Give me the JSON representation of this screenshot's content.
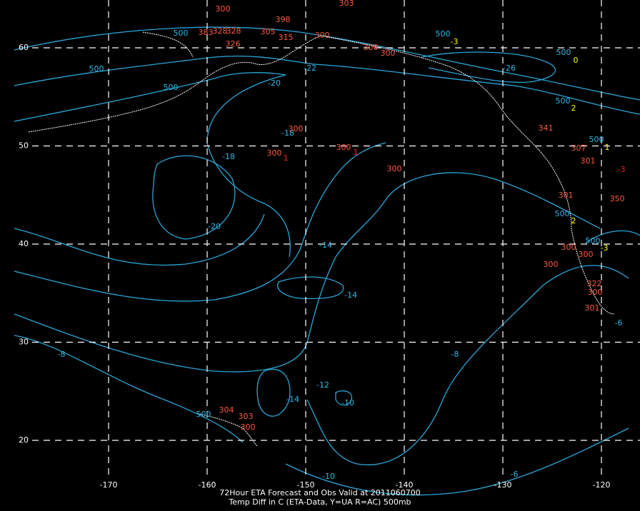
{
  "map": {
    "title_lines": [
      "72Hour ETA Forecast and Obs Valid at 2011060700",
      "Temp Diff in C (ETA-Data, Y=UA R=AC) 500mb"
    ],
    "lon_ticks": [
      -170,
      -160,
      -150,
      -140,
      -130,
      -120
    ],
    "lat_ticks": [
      60,
      50,
      40,
      30,
      20
    ],
    "contour_labels": [
      "500",
      "500",
      "500",
      "-20",
      "-18",
      "-18",
      "-20",
      "-14",
      "-14",
      "-12",
      "-14",
      "-10",
      "-10",
      "-8",
      "-8",
      "-6",
      "-26",
      "-22",
      "500",
      "500",
      "500",
      "500",
      "500",
      "500",
      "500",
      "-6"
    ],
    "station_labels": [
      {
        "text": "300",
        "color": "#ff5a3c"
      },
      {
        "text": "303",
        "color": "#ff5a3c"
      },
      {
        "text": "398",
        "color": "#ff5a3c"
      },
      {
        "text": "383",
        "color": "#ff5a3c"
      },
      {
        "text": "328",
        "color": "#ff5a3c"
      },
      {
        "text": "328",
        "color": "#ff5a3c"
      },
      {
        "text": "326",
        "color": "#ff5a3c"
      },
      {
        "text": "305",
        "color": "#ff5a3c"
      },
      {
        "text": "315",
        "color": "#ff5a3c"
      },
      {
        "text": "300",
        "color": "#ff5a3c"
      },
      {
        "text": "300",
        "color": "#ff5a3c"
      },
      {
        "text": "300",
        "color": "#ff5a3c"
      },
      {
        "text": "300",
        "color": "#ff5a3c"
      },
      {
        "text": "300",
        "color": "#ff5a3c"
      },
      {
        "text": "300",
        "color": "#ff5a3c"
      },
      {
        "text": "300",
        "color": "#ff5a3c"
      },
      {
        "text": "341",
        "color": "#ff5a3c"
      },
      {
        "text": "307",
        "color": "#ff5a3c"
      },
      {
        "text": "301",
        "color": "#ff5a3c"
      },
      {
        "text": "301",
        "color": "#ff5a3c"
      },
      {
        "text": "300",
        "color": "#ff5a3c"
      },
      {
        "text": "300",
        "color": "#ff5a3c"
      },
      {
        "text": "300",
        "color": "#ff5a3c"
      },
      {
        "text": "322",
        "color": "#ff5a3c"
      },
      {
        "text": "300",
        "color": "#ff5a3c"
      },
      {
        "text": "301",
        "color": "#ff5a3c"
      },
      {
        "text": "350",
        "color": "#ff5a3c"
      },
      {
        "text": "304",
        "color": "#ff5a3c"
      },
      {
        "text": "303",
        "color": "#ff5a3c"
      },
      {
        "text": "300",
        "color": "#ff5a3c"
      },
      {
        "text": "1",
        "color": "#ff2020"
      },
      {
        "text": "1",
        "color": "#ff2020"
      },
      {
        "text": "-3",
        "color": "#ff2020"
      },
      {
        "text": "0",
        "color": "#ffff00"
      },
      {
        "text": "2",
        "color": "#ffff00"
      },
      {
        "text": "2",
        "color": "#ffff00"
      },
      {
        "text": "1",
        "color": "#ffff00"
      },
      {
        "text": "-3",
        "color": "#ffff00"
      },
      {
        "text": "-3",
        "color": "#ffff00"
      }
    ]
  }
}
